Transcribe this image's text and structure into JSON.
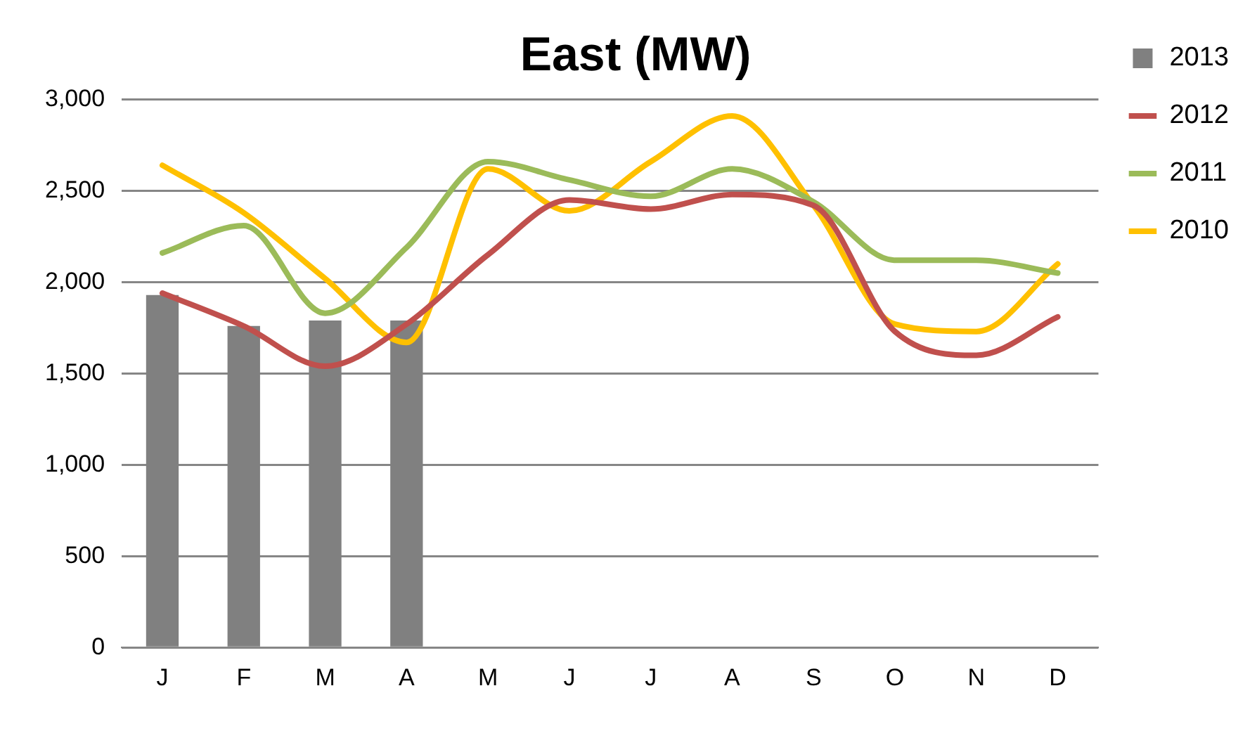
{
  "chart_data": {
    "type": "bar",
    "title": "East (MW)",
    "categories": [
      "J",
      "F",
      "M",
      "A",
      "M",
      "J",
      "J",
      "A",
      "S",
      "O",
      "N",
      "D"
    ],
    "series": [
      {
        "name": "2013",
        "color": "#808080",
        "values": [
          1930,
          1760,
          1790,
          1790,
          null,
          null,
          null,
          null,
          null,
          null,
          null,
          null
        ]
      },
      {
        "name": "2012",
        "type": "line",
        "color": "#c0504d",
        "values": [
          1940,
          1760,
          1540,
          1770,
          2150,
          2450,
          2400,
          2480,
          2420,
          1730,
          1600,
          1810
        ]
      },
      {
        "name": "2011",
        "type": "line",
        "color": "#9bbb59",
        "values": [
          2160,
          2310,
          1830,
          2190,
          2660,
          2560,
          2470,
          2620,
          2440,
          2120,
          2120,
          2050
        ]
      },
      {
        "name": "2010",
        "type": "line",
        "color": "#ffc000",
        "values": [
          2640,
          2380,
          2020,
          1670,
          2620,
          2390,
          2660,
          2910,
          2420,
          1770,
          1730,
          2100
        ]
      }
    ],
    "ylim": [
      0,
      3000
    ],
    "yticks": [
      0,
      500,
      {
        "value": 1000,
        "label": "1,000"
      },
      {
        "value": 1500,
        "label": "1,500"
      },
      {
        "value": 2000,
        "label": "2,000"
      },
      {
        "value": 2500,
        "label": "2,500"
      },
      {
        "value": 3000,
        "label": "3,000"
      }
    ],
    "grid": "y",
    "legend": "top right",
    "marker": "none"
  }
}
